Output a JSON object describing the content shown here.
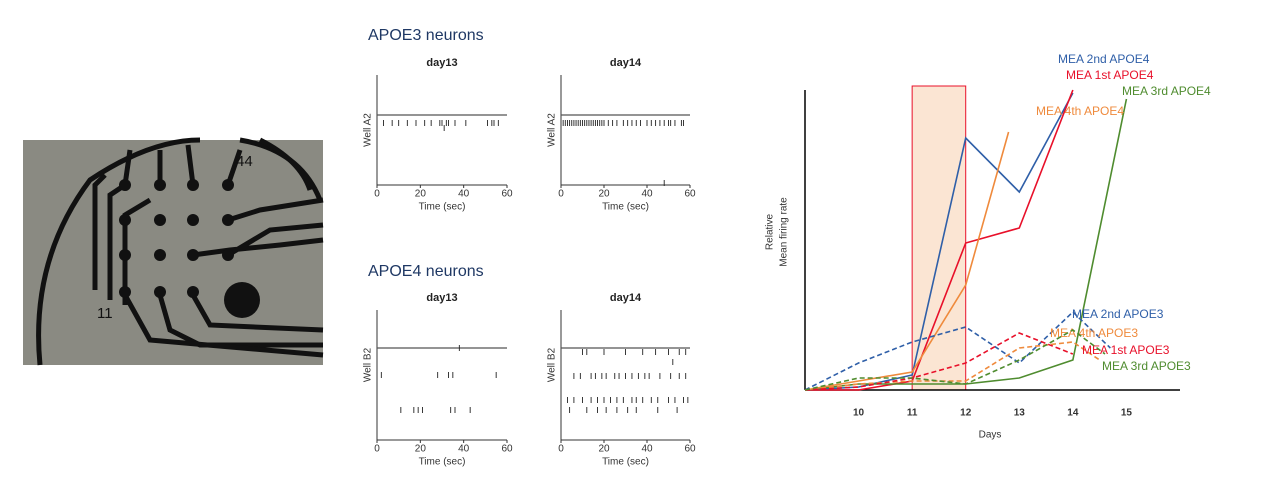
{
  "photo": {
    "labels": [
      "44",
      "11"
    ]
  },
  "panels": [
    "APOE3 neurons",
    "APOE4 neurons"
  ],
  "chart_data": [
    {
      "type": "raster",
      "title": "day13",
      "y_label": "Well A2",
      "x_label": "Time (sec)",
      "xlim": [
        0,
        60
      ],
      "xticks": [
        0,
        20,
        40,
        60
      ],
      "rows": [
        [
          3,
          7,
          10,
          14,
          18,
          22,
          25,
          29,
          30,
          32,
          33,
          36,
          41,
          51,
          53,
          54,
          56
        ],
        [
          31
        ]
      ]
    },
    {
      "type": "raster",
      "title": "day14",
      "y_label": "Well A2",
      "x_label": "Time (sec)",
      "xlim": [
        0,
        60
      ],
      "xticks": [
        0,
        20,
        40,
        60
      ],
      "rows": [
        [
          1,
          2,
          3,
          4,
          5,
          6,
          7,
          8,
          9,
          10,
          11,
          12,
          13,
          14,
          15,
          16,
          17,
          18,
          19,
          20,
          22,
          24,
          26,
          29,
          31,
          33,
          35,
          37,
          40,
          42,
          44,
          46,
          48,
          50,
          51,
          53,
          56,
          57
        ],
        [
          48
        ]
      ]
    },
    {
      "type": "raster",
      "title": "day13",
      "y_label": "Well B2",
      "x_label": "Time (sec)",
      "xlim": [
        0,
        60
      ],
      "xticks": [
        0,
        20,
        40,
        60
      ],
      "rows": [
        [
          38
        ],
        [
          2,
          28,
          33,
          35,
          55
        ],
        [
          11,
          17,
          19,
          21,
          34,
          36,
          43
        ]
      ]
    },
    {
      "type": "raster",
      "title": "day14",
      "y_label": "Well B2",
      "x_label": "Time (sec)",
      "xlim": [
        0,
        60
      ],
      "xticks": [
        0,
        20,
        40,
        60
      ],
      "rows": [
        [
          10,
          12,
          20,
          30,
          38,
          44,
          50,
          55,
          58
        ],
        [
          52
        ],
        [
          6,
          9,
          14,
          16,
          19,
          21,
          25,
          27,
          30,
          33,
          36,
          39,
          41,
          46,
          51,
          55,
          58
        ],
        [
          3,
          6,
          10,
          14,
          17,
          20,
          23,
          26,
          29,
          33,
          35,
          38,
          42,
          45,
          50,
          53,
          57,
          59
        ],
        [
          4,
          12,
          17,
          21,
          26,
          31,
          35,
          45,
          54
        ]
      ]
    },
    {
      "type": "line",
      "y_label": [
        "Relative",
        "Mean firing rate"
      ],
      "x_label": "Days",
      "xlim": [
        9,
        16
      ],
      "xticks": [
        10,
        11,
        12,
        13,
        14,
        15
      ],
      "ylim": [
        0,
        100
      ],
      "highlight_x": [
        11,
        12
      ],
      "series": [
        {
          "name": "MEA 2nd APOE4",
          "color": "#2f5fa8",
          "dash": false,
          "x": [
            9,
            10,
            11,
            12,
            13,
            14
          ],
          "values": [
            0,
            1,
            5,
            84,
            66,
            99
          ]
        },
        {
          "name": "MEA 1st APOE4",
          "color": "#e8102a",
          "dash": false,
          "x": [
            9,
            10,
            11,
            12,
            13,
            14
          ],
          "values": [
            0,
            0,
            3,
            49,
            54,
            100
          ]
        },
        {
          "name": "MEA 3rd APOE4",
          "color": "#4f8c2f",
          "dash": false,
          "x": [
            9,
            10,
            11,
            12,
            13,
            14,
            15
          ],
          "values": [
            0,
            2,
            2,
            2,
            4,
            10,
            97
          ]
        },
        {
          "name": "MEA 4th APOE4",
          "color": "#ef8a3c",
          "dash": false,
          "x": [
            9,
            10,
            11,
            12,
            12.8
          ],
          "values": [
            0,
            3,
            6,
            35,
            86
          ]
        },
        {
          "name": "MEA 2nd APOE3",
          "color": "#2f5fa8",
          "dash": true,
          "x": [
            9,
            10,
            11,
            12,
            13,
            14,
            14.7
          ],
          "values": [
            0,
            9,
            16,
            21,
            9,
            26,
            14
          ]
        },
        {
          "name": "MEA 4th APOE3",
          "color": "#ef8a3c",
          "dash": true,
          "x": [
            9,
            10,
            11,
            12,
            13,
            14,
            14.5
          ],
          "values": [
            0,
            2,
            3,
            3,
            14,
            16,
            10
          ]
        },
        {
          "name": "MEA 1st APOE3",
          "color": "#e8102a",
          "dash": true,
          "x": [
            9,
            10,
            11,
            12,
            13,
            14
          ],
          "values": [
            0,
            1,
            4,
            9,
            19,
            12
          ]
        },
        {
          "name": "MEA 3rd APOE3",
          "color": "#4f8c2f",
          "dash": true,
          "x": [
            9,
            10,
            11,
            12,
            13,
            14,
            14.6
          ],
          "values": [
            0,
            4,
            4,
            2,
            10,
            20,
            12
          ]
        }
      ]
    }
  ]
}
